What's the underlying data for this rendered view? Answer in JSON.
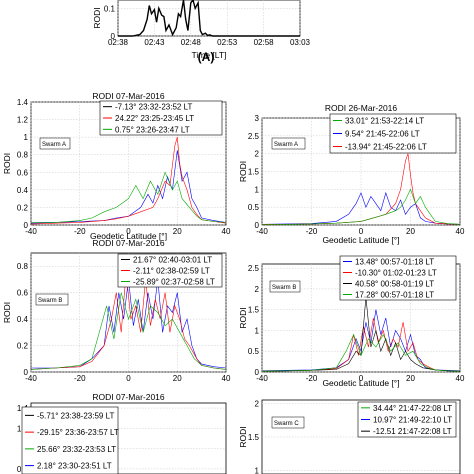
{
  "figure_label": "(A)",
  "chart_data": [
    {
      "id": "top",
      "type": "line",
      "title": "",
      "xlabel": "Time [LT]",
      "ylabel": "RODI",
      "x_ticks": [
        "02:38",
        "02:43",
        "02:48",
        "02:53",
        "02:58",
        "03:03"
      ],
      "y_ticks": [
        "0",
        "0.1"
      ],
      "xlim": [
        0,
        25
      ],
      "ylim": [
        0,
        0.13
      ],
      "grid": true,
      "series": [
        {
          "color": "#000000",
          "x": [
            0,
            1,
            2,
            3,
            3.5,
            4,
            4.3,
            4.6,
            5,
            5.3,
            5.6,
            6,
            6.3,
            6.6,
            7,
            7.5,
            8,
            8.3,
            8.6,
            9,
            9.3,
            9.6,
            10,
            10.3,
            10.6,
            11,
            11.3,
            11.6,
            12,
            12.3,
            12.6,
            13,
            14,
            15,
            16,
            17,
            18,
            19,
            20,
            21,
            22,
            23,
            24,
            25
          ],
          "y": [
            0,
            0,
            0,
            0.005,
            0.02,
            0.06,
            0.11,
            0.08,
            0.095,
            0.05,
            0.1,
            0.075,
            0.07,
            0.02,
            0.04,
            0.005,
            0.03,
            0.08,
            0.07,
            0.13,
            0.06,
            0.02,
            0.12,
            0.13,
            0.1,
            0.12,
            0.02,
            0.005,
            0.01,
            0.002,
            0.004,
            0,
            0,
            0,
            0,
            0,
            0,
            0,
            0,
            0,
            0,
            0,
            0,
            0
          ]
        }
      ]
    },
    {
      "id": "mid-left-1",
      "type": "line",
      "title": "RODI  07-Mar-2016",
      "xlabel": "Geodetic Latitude [°]",
      "ylabel": "RODI",
      "x_ticks": [
        "-40",
        "-20",
        "0",
        "20",
        "40"
      ],
      "y_ticks": [
        "0",
        "0.2",
        "0.4",
        "0.6",
        "0.8",
        "1",
        "1.2",
        "1.4"
      ],
      "xlim": [
        -40,
        40
      ],
      "ylim": [
        0,
        1.4
      ],
      "grid": true,
      "annotation": "Swarm A",
      "legend": [
        {
          "text": "-7.13° 23:32-23:52 LT",
          "color": "#000000"
        },
        {
          "text": "24.22° 23:25-23:45 LT",
          "color": "#ff0000"
        },
        {
          "text": "0.75° 23:26-23:47 LT",
          "color": "#00aa00"
        }
      ],
      "series": [
        {
          "name": "-7.13° 23:32-23:52 LT",
          "color": "#0000ff",
          "x": [
            -40,
            -30,
            -20,
            -10,
            -5,
            0,
            5,
            8,
            10,
            12,
            14,
            16,
            18,
            20,
            22,
            24,
            26,
            28,
            30,
            35,
            40
          ],
          "y": [
            0.02,
            0.03,
            0.04,
            0.05,
            0.08,
            0.1,
            0.2,
            0.35,
            0.25,
            0.45,
            0.3,
            0.55,
            0.4,
            0.85,
            0.5,
            0.6,
            0.3,
            0.2,
            0.08,
            0.05,
            0.03
          ]
        },
        {
          "name": "24.22° 23:25-23:45 LT",
          "color": "#ff0000",
          "x": [
            -40,
            -30,
            -20,
            -10,
            -5,
            0,
            5,
            10,
            12,
            15,
            17,
            19,
            20,
            21,
            22,
            24,
            26,
            28,
            30,
            35,
            40
          ],
          "y": [
            0.01,
            0.02,
            0.03,
            0.05,
            0.07,
            0.1,
            0.15,
            0.2,
            0.3,
            0.5,
            0.45,
            0.9,
            1.0,
            0.7,
            0.55,
            0.4,
            0.2,
            0.12,
            0.06,
            0.04,
            0.02
          ]
        },
        {
          "name": "0.75° 23:26-23:47 LT",
          "color": "#00aa00",
          "x": [
            -40,
            -30,
            -20,
            -15,
            -10,
            -5,
            0,
            3,
            6,
            9,
            12,
            15,
            18,
            20,
            22,
            25,
            28,
            30,
            35,
            40
          ],
          "y": [
            0.03,
            0.03,
            0.05,
            0.08,
            0.15,
            0.2,
            0.3,
            0.45,
            0.3,
            0.5,
            0.35,
            0.6,
            0.4,
            0.5,
            0.3,
            0.2,
            0.1,
            0.06,
            0.04,
            0.03
          ]
        }
      ]
    },
    {
      "id": "mid-right-1",
      "type": "line",
      "title": "RODI 26-Mar-2016",
      "xlabel": "Geodetic Latitude [°]",
      "ylabel": "RODI",
      "x_ticks": [
        "-40",
        "-20",
        "0",
        "20",
        "40"
      ],
      "y_ticks": [
        "0",
        "0.5",
        "1",
        "1.5",
        "2",
        "2.5",
        "3"
      ],
      "xlim": [
        -40,
        40
      ],
      "ylim": [
        0,
        3
      ],
      "grid": true,
      "annotation": "Swarm A",
      "legend": [
        {
          "text": "33.01° 21:53-22:14 LT",
          "color": "#00aa00"
        },
        {
          "text": "9.54° 21:45-22:06 LT",
          "color": "#0000ff"
        },
        {
          "text": "-13.94° 21:45-22:06 LT",
          "color": "#ff0000"
        }
      ],
      "series": [
        {
          "name": "9.54° 21:45-22:06 LT",
          "color": "#0000ff",
          "x": [
            -40,
            -30,
            -20,
            -10,
            -5,
            -2,
            0,
            2,
            4,
            6,
            8,
            10,
            12,
            14,
            16,
            18,
            20,
            22,
            24,
            26,
            30,
            35,
            40
          ],
          "y": [
            0.02,
            0.03,
            0.04,
            0.1,
            0.3,
            0.6,
            0.9,
            0.5,
            0.8,
            0.6,
            0.4,
            0.9,
            0.5,
            0.4,
            0.7,
            0.3,
            0.5,
            0.6,
            0.2,
            0.1,
            0.05,
            0.03,
            0.02
          ]
        },
        {
          "name": "-13.94° 21:45-22:06 LT",
          "color": "#ff0000",
          "x": [
            -40,
            -30,
            -20,
            -10,
            0,
            5,
            10,
            14,
            16,
            18,
            19,
            20,
            21,
            22,
            24,
            26,
            30,
            35,
            40
          ],
          "y": [
            0.01,
            0.02,
            0.03,
            0.05,
            0.1,
            0.2,
            0.3,
            0.6,
            1.0,
            1.8,
            2.0,
            1.4,
            0.9,
            0.6,
            0.4,
            0.2,
            0.05,
            0.03,
            0.02
          ]
        },
        {
          "name": "33.01° 21:53-22:14 LT",
          "color": "#00aa00",
          "x": [
            -40,
            -30,
            -20,
            -10,
            0,
            5,
            10,
            14,
            16,
            18,
            20,
            22,
            24,
            26,
            28,
            30,
            35,
            40
          ],
          "y": [
            0.02,
            0.02,
            0.03,
            0.05,
            0.1,
            0.2,
            0.3,
            0.4,
            0.5,
            0.7,
            1.0,
            0.6,
            0.8,
            0.5,
            0.3,
            0.1,
            0.04,
            0.02
          ]
        }
      ]
    },
    {
      "id": "mid-left-2",
      "type": "line",
      "title": "RODI  07-Mar-2016",
      "xlabel": "",
      "ylabel": "RODI",
      "x_ticks": [
        "-40",
        "-20",
        "0",
        "20",
        "40"
      ],
      "y_ticks": [
        "0",
        "0.2",
        "0.4",
        "0.6",
        "0.8"
      ],
      "xlim": [
        -40,
        40
      ],
      "ylim": [
        0,
        0.9
      ],
      "grid": true,
      "annotation": "Swarm B",
      "legend": [
        {
          "text": "21.67° 02:40-03:01 LT",
          "color": "#000000"
        },
        {
          "text": "-2.11° 02:38-02:59 LT",
          "color": "#ff0000"
        },
        {
          "text": "-25.89° 02:37-02:58 LT",
          "color": "#00aa00"
        }
      ],
      "series": [
        {
          "name": "21.67° 02:40-03:01 LT",
          "color": "#0000ff",
          "x": [
            -40,
            -30,
            -20,
            -15,
            -10,
            -8,
            -6,
            -4,
            -2,
            0,
            2,
            4,
            6,
            8,
            10,
            12,
            14,
            16,
            18,
            20,
            22,
            24,
            26,
            28,
            30,
            35,
            40
          ],
          "y": [
            0.03,
            0.03,
            0.04,
            0.1,
            0.2,
            0.5,
            0.3,
            0.6,
            0.4,
            0.7,
            0.35,
            0.55,
            0.3,
            0.6,
            0.4,
            0.7,
            0.3,
            0.5,
            0.45,
            0.6,
            0.3,
            0.4,
            0.2,
            0.1,
            0.06,
            0.04,
            0.03
          ]
        },
        {
          "name": "-2.11° 02:38-02:59 LT",
          "color": "#ff0000",
          "x": [
            -40,
            -30,
            -20,
            -15,
            -10,
            -7,
            -5,
            -3,
            -1,
            1,
            3,
            5,
            7,
            9,
            11,
            13,
            15,
            17,
            19,
            21,
            23,
            25,
            28,
            30,
            35,
            40
          ],
          "y": [
            0.02,
            0.03,
            0.04,
            0.08,
            0.2,
            0.4,
            0.6,
            0.3,
            0.75,
            0.4,
            0.5,
            0.3,
            0.7,
            0.35,
            0.55,
            0.4,
            0.6,
            0.3,
            0.5,
            0.4,
            0.25,
            0.2,
            0.1,
            0.05,
            0.03,
            0.02
          ]
        },
        {
          "name": "-25.89° 02:37-02:58 LT",
          "color": "#00aa00",
          "x": [
            -40,
            -30,
            -20,
            -15,
            -12,
            -9,
            -6,
            -3,
            0,
            3,
            6,
            9,
            12,
            15,
            18,
            21,
            24,
            27,
            30,
            35,
            40
          ],
          "y": [
            0.02,
            0.03,
            0.05,
            0.1,
            0.3,
            0.5,
            0.25,
            0.6,
            0.4,
            0.55,
            0.3,
            0.5,
            0.45,
            0.35,
            0.4,
            0.3,
            0.2,
            0.1,
            0.05,
            0.03,
            0.02
          ]
        }
      ]
    },
    {
      "id": "mid-right-2",
      "type": "line",
      "title": "",
      "xlabel": "Geodetic Latitude [°]",
      "ylabel": "RODI",
      "x_ticks": [
        "-40",
        "-20",
        "0",
        "20",
        "40"
      ],
      "y_ticks": [
        "0",
        "0.5",
        "1",
        "1.5",
        "2",
        "2.5"
      ],
      "xlim": [
        -40,
        40
      ],
      "ylim": [
        0,
        2.6
      ],
      "grid": true,
      "annotation": "Swarm B",
      "legend": [
        {
          "text": "13.48° 00:57-01:18 LT",
          "color": "#0000ff"
        },
        {
          "text": "-10.30° 01:02-01:23 LT",
          "color": "#ff0000"
        },
        {
          "text": "40.58° 00:58-01:19 LT",
          "color": "#000000"
        },
        {
          "text": "17.28° 00:57-01:18 LT",
          "color": "#00aa00"
        }
      ],
      "series": [
        {
          "name": "13.48° 00:57-01:18 LT",
          "color": "#0000ff",
          "x": [
            -40,
            -30,
            -20,
            -10,
            -5,
            -2,
            0,
            2,
            4,
            6,
            8,
            10,
            12,
            14,
            16,
            18,
            20,
            22,
            24,
            26,
            30,
            35,
            40
          ],
          "y": [
            0.03,
            0.04,
            0.05,
            0.1,
            0.3,
            0.8,
            0.5,
            1.2,
            0.7,
            1.5,
            0.9,
            1.3,
            0.6,
            1.0,
            0.8,
            0.5,
            0.9,
            0.4,
            0.3,
            0.1,
            0.05,
            0.04,
            0.03
          ]
        },
        {
          "name": "-10.30° 01:02-01:23 LT",
          "color": "#ff0000",
          "x": [
            -40,
            -30,
            -20,
            -10,
            -5,
            -3,
            -1,
            1,
            3,
            5,
            7,
            9,
            11,
            13,
            15,
            17,
            19,
            21,
            23,
            25,
            28,
            30,
            35,
            40
          ],
          "y": [
            0.02,
            0.03,
            0.04,
            0.08,
            0.3,
            0.9,
            0.4,
            1.1,
            0.6,
            1.3,
            0.7,
            1.0,
            0.5,
            0.8,
            0.6,
            1.2,
            0.5,
            0.7,
            0.3,
            0.2,
            0.1,
            0.05,
            0.03,
            0.02
          ]
        },
        {
          "name": "40.58° 00:58-01:19 LT",
          "color": "#000000",
          "x": [
            -40,
            -30,
            -20,
            -10,
            -5,
            -2,
            0,
            2,
            4,
            6,
            8,
            10,
            12,
            14,
            16,
            18,
            20,
            22,
            25,
            30,
            35,
            40
          ],
          "y": [
            0.02,
            0.03,
            0.04,
            0.06,
            0.2,
            0.5,
            0.4,
            1.8,
            0.6,
            1.0,
            0.5,
            0.8,
            0.4,
            0.7,
            0.3,
            0.5,
            0.3,
            0.2,
            0.1,
            0.05,
            0.03,
            0.02
          ]
        },
        {
          "name": "17.28° 00:57-01:18 LT",
          "color": "#00aa00",
          "x": [
            -40,
            -30,
            -20,
            -10,
            -6,
            -3,
            0,
            3,
            6,
            9,
            12,
            15,
            18,
            21,
            24,
            27,
            30,
            35,
            40
          ],
          "y": [
            0.02,
            0.03,
            0.04,
            0.1,
            0.5,
            0.9,
            0.4,
            0.8,
            0.6,
            0.9,
            0.5,
            0.7,
            0.4,
            0.5,
            0.2,
            0.1,
            0.05,
            0.03,
            0.02
          ]
        }
      ]
    },
    {
      "id": "bottom-left",
      "type": "line",
      "title": "RODI 07-Mar-2016",
      "xlabel": "",
      "ylabel": "",
      "x_ticks": [],
      "y_ticks": [
        "1.4",
        "1.2",
        "1",
        "0.8"
      ],
      "xlim": [
        -40,
        40
      ],
      "ylim": [
        0.75,
        1.45
      ],
      "grid": true,
      "annotation": "",
      "legend": [
        {
          "text": "-5.71° 23:38-23:59 LT",
          "color": "#000000"
        },
        {
          "text": "-29.15° 23:36-23:57 LT",
          "color": "#ff0000"
        },
        {
          "text": "25.66° 23:32-23:53 LT",
          "color": "#00aa00"
        },
        {
          "text": "2.18° 23:30-23:51 LT",
          "color": "#0000ff"
        }
      ],
      "series": []
    },
    {
      "id": "bottom-right",
      "type": "line",
      "title": "",
      "xlabel": "",
      "ylabel": "RODI",
      "x_ticks": [],
      "y_ticks": [
        "2",
        "1.5",
        "1"
      ],
      "xlim": [
        -40,
        40
      ],
      "ylim": [
        0.95,
        2.05
      ],
      "grid": true,
      "annotation": "Swarm C",
      "legend": [
        {
          "text": "34.44° 21:47-22:08 LT",
          "color": "#00aa00"
        },
        {
          "text": "10.97° 21:49-22:10 LT",
          "color": "#0000ff"
        },
        {
          "text": "-12.51 21:47-22:08 LT",
          "color": "#000000"
        }
      ],
      "series": []
    }
  ]
}
